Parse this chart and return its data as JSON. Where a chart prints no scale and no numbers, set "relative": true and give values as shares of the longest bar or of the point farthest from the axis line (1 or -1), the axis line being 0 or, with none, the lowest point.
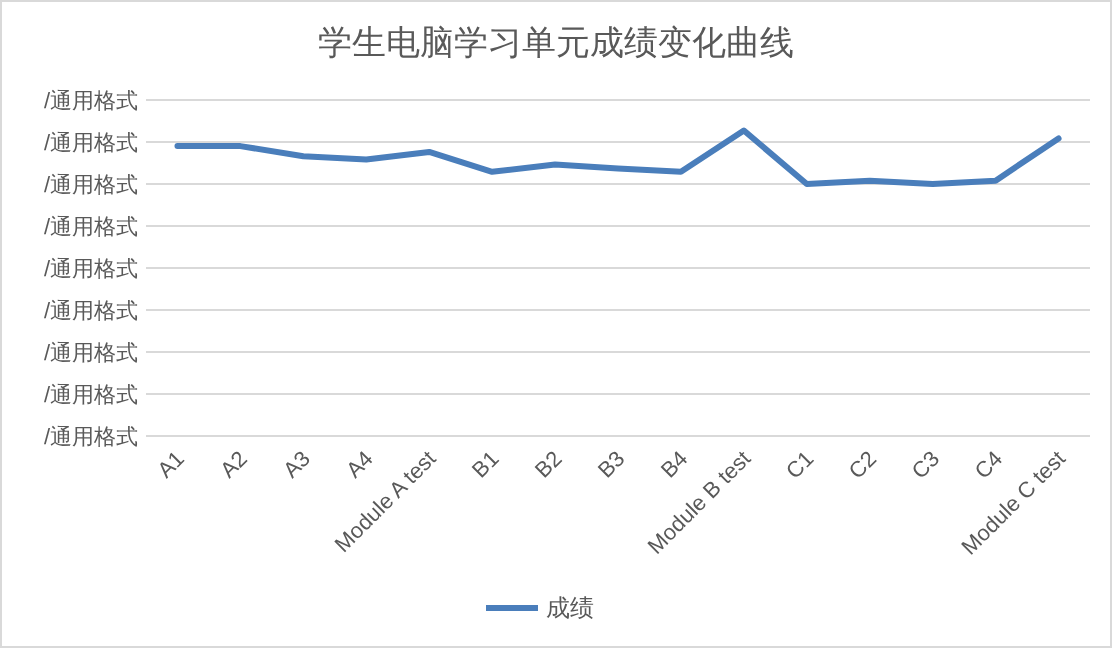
{
  "chart_data": {
    "type": "line",
    "title": "学生电脑学习单元成绩变化曲线",
    "relative": true,
    "categories": [
      "A1",
      "A2",
      "A3",
      "A4",
      "Module A test",
      "B1",
      "B2",
      "B3",
      "B4",
      "Module B test",
      "C1",
      "C2",
      "C3",
      "C4",
      "Module C test"
    ],
    "series": [
      {
        "name": "成绩",
        "color": "#4a7ebb",
        "values": [
          0.949,
          0.949,
          0.916,
          0.905,
          0.93,
          0.865,
          0.889,
          0.876,
          0.865,
          1,
          0.825,
          0.836,
          0.825,
          0.836,
          0.974
        ]
      }
    ],
    "annotations": [
      "/通用格式",
      "/通用格式",
      "/通用格式",
      "/通用格式",
      "/通用格式",
      "/通用格式",
      "/通用格式",
      "/通用格式",
      "/通用格式"
    ],
    "grid": true,
    "legend": "bottom",
    "marker": "none",
    "line_style": "solid"
  }
}
